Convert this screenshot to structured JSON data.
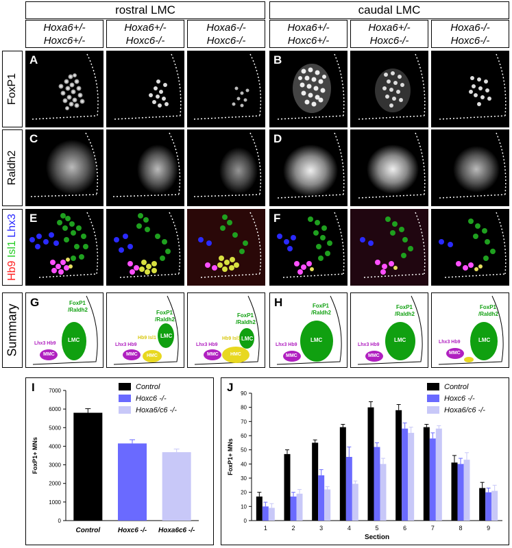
{
  "headers": {
    "rostral": "rostral LMC",
    "caudal": "caudal LMC"
  },
  "genotypes": [
    [
      "Hoxa6+/-",
      "Hoxc6+/-"
    ],
    [
      "Hoxa6+/-",
      "Hoxc6-/-"
    ],
    [
      "Hoxa6-/-",
      "Hoxc6-/-"
    ],
    [
      "Hoxa6+/-",
      "Hoxc6+/-"
    ],
    [
      "Hoxa6+/-",
      "Hoxc6-/-"
    ],
    [
      "Hoxa6-/-",
      "Hoxc6-/-"
    ]
  ],
  "row_labels": {
    "foxp1": "FoxP1",
    "raldh2": "Raldh2",
    "summary": "Summary"
  },
  "row3_label": [
    {
      "text": "Hb9",
      "color": "#ff2020"
    },
    {
      "text": " Isl1",
      "color": "#22cc22"
    },
    {
      "text": " Lhx3",
      "color": "#2a2aff"
    }
  ],
  "panel_letters": {
    "A": "A",
    "B": "B",
    "C": "C",
    "D": "D",
    "E": "E",
    "F": "F",
    "G": "G",
    "H": "H",
    "I": "I",
    "J": "J"
  },
  "summary_labels": {
    "foxp1_raldh2_1": "FoxP1",
    "foxp1_raldh2_2": "/Raldh2",
    "lmc": "LMC",
    "mmc": "MMC",
    "hmc": "HMC",
    "lhx3hb9": "Lhx3 Hb9",
    "hb9isl1": "Hb9 Isl1"
  },
  "colors": {
    "green": "#10a010",
    "magenta": "#b020c0",
    "yellow": "#e8d820",
    "control": "#000000",
    "hoxc6": "#6a6aff",
    "hoxa6c6": "#c8c8f8"
  },
  "chart_I": {
    "type": "bar",
    "categories": [
      "Control",
      "Hoxc6 -/-",
      "Hoxa6c6 -/-"
    ],
    "values": [
      5800,
      4150,
      3680
    ],
    "errors": [
      220,
      200,
      170
    ],
    "ylabel": "FoxP1+ MNs",
    "ylim": [
      0,
      7000
    ],
    "yticks": [
      "0",
      "1000",
      "2000",
      "3000",
      "4000",
      "5000",
      "6000",
      "7000"
    ],
    "legend": [
      "Control",
      "Hoxc6 -/-",
      "Hoxa6/c6 -/-"
    ]
  },
  "chart_J": {
    "type": "bar",
    "categories": [
      "1",
      "2",
      "3",
      "4",
      "5",
      "6",
      "7",
      "8",
      "9"
    ],
    "series": [
      {
        "name": "Control",
        "values": [
          17,
          47,
          55,
          66,
          80,
          78,
          66,
          41,
          23
        ],
        "errors": [
          3,
          3,
          2,
          2,
          4,
          4,
          2,
          5,
          4
        ]
      },
      {
        "name": "Hoxc6 -/-",
        "values": [
          10,
          17,
          32,
          45,
          52,
          65,
          58,
          40,
          20
        ],
        "errors": [
          3,
          3,
          4,
          7,
          3,
          4,
          4,
          4,
          3
        ]
      },
      {
        "name": "Hoxa6/c6 -/-",
        "values": [
          9,
          19,
          22,
          26,
          40,
          62,
          65,
          43,
          21
        ],
        "errors": [
          3,
          3,
          2,
          2,
          4,
          4,
          2,
          5,
          4
        ]
      }
    ],
    "xlabel": "Section",
    "ylabel": "FoxP1+ MNs",
    "ylim": [
      0,
      90
    ],
    "yticks": [
      "0",
      "10",
      "20",
      "30",
      "40",
      "50",
      "60",
      "70",
      "80",
      "90"
    ],
    "legend": [
      "Control",
      "Hoxc6 -/-",
      "Hoxa6/c6 -/-"
    ]
  }
}
